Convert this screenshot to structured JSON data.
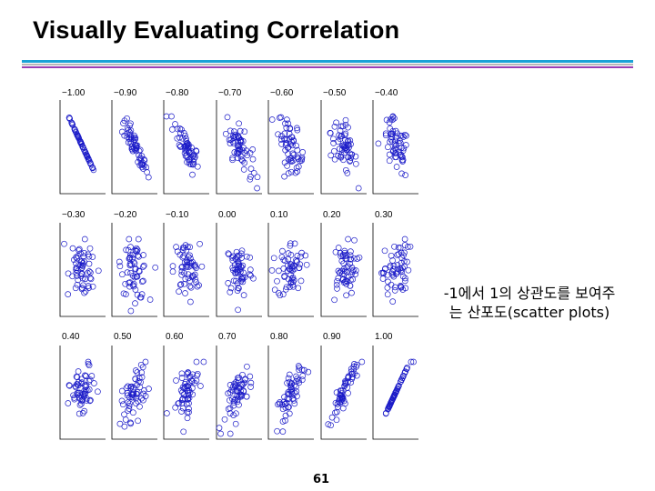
{
  "slide": {
    "title": "Visually Evaluating Correlation",
    "caption_lines": [
      "-1에서 1의 상관도를 보여주",
      "는 산포도(scatter plots)"
    ],
    "page_number": "61"
  },
  "colors": {
    "title_rule_1": "#1aa2d6",
    "title_rule_2": "#b8b8b8",
    "title_rule_3": "#9a3fb5",
    "marker": "#1c1cc8",
    "axis": "#000000"
  },
  "chart_data": {
    "type": "scatter",
    "description_title": "Scatter plots for correlation coefficients from -1.00 to 1.00",
    "marker_style": "open-circle",
    "points_per_panel": 60,
    "panels": [
      {
        "label": "−1.00",
        "r": -1.0
      },
      {
        "label": "−0.90",
        "r": -0.9
      },
      {
        "label": "−0.80",
        "r": -0.8
      },
      {
        "label": "−0.70",
        "r": -0.7
      },
      {
        "label": "−0.60",
        "r": -0.6
      },
      {
        "label": "−0.50",
        "r": -0.5
      },
      {
        "label": "−0.40",
        "r": -0.4
      },
      {
        "label": "−0.30",
        "r": -0.3
      },
      {
        "label": "−0.20",
        "r": -0.2
      },
      {
        "label": "−0.10",
        "r": -0.1
      },
      {
        "label": "0.00",
        "r": 0.0
      },
      {
        "label": "0.10",
        "r": 0.1
      },
      {
        "label": "0.20",
        "r": 0.2
      },
      {
        "label": "0.30",
        "r": 0.3
      },
      {
        "label": "0.40",
        "r": 0.4
      },
      {
        "label": "0.50",
        "r": 0.5
      },
      {
        "label": "0.60",
        "r": 0.6
      },
      {
        "label": "0.70",
        "r": 0.7
      },
      {
        "label": "0.80",
        "r": 0.8
      },
      {
        "label": "0.90",
        "r": 0.9
      },
      {
        "label": "1.00",
        "r": 1.0
      }
    ]
  }
}
